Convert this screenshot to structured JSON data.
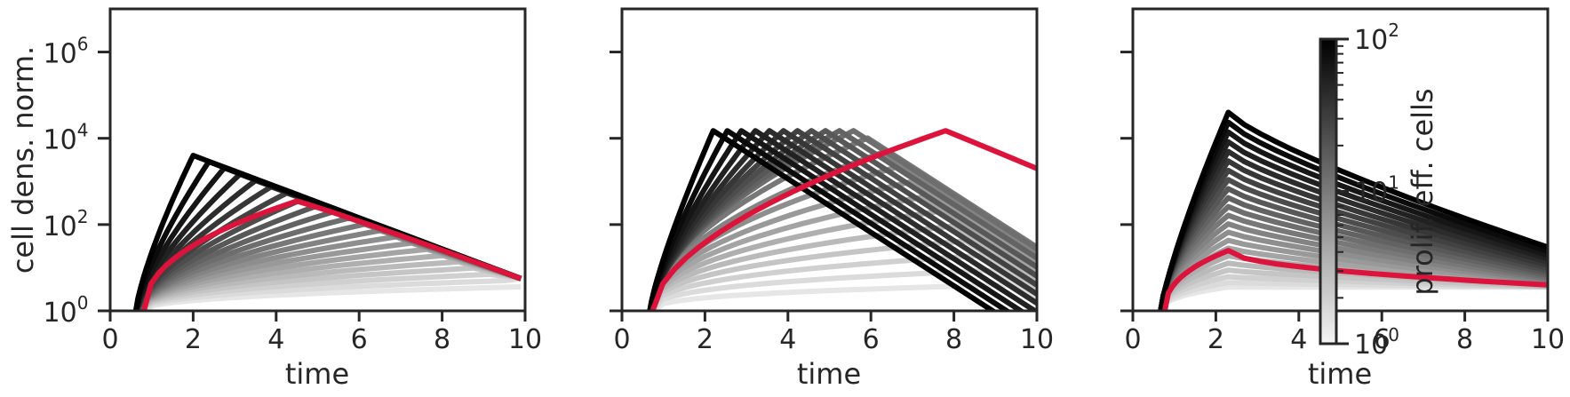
{
  "chart_data": [
    {
      "type": "line",
      "panel": "left",
      "xlabel": "time",
      "ylabel": "cell dens. norm.",
      "xlim": [
        0,
        10
      ],
      "ylim": [
        1,
        10000000
      ],
      "y_scale": "log",
      "x_ticks": [
        "0",
        "2",
        "4",
        "6",
        "8",
        "10"
      ],
      "y_ticks": [
        {
          "base": "10",
          "exp": "0"
        },
        {
          "base": "10",
          "exp": "2"
        },
        {
          "base": "10",
          "exp": "4"
        },
        {
          "base": "10",
          "exp": "6"
        }
      ],
      "peak_start": {
        "time": 2.0,
        "density": 4000
      },
      "peak_end": {
        "time": 9.9,
        "density": 5.6
      },
      "end_point": {
        "time": 9.9,
        "density": 5.6
      },
      "n_series": 22,
      "highlight": {
        "peak_time": 4.5,
        "peak_density": 350,
        "end_density": 5.6,
        "color": "#dc143c"
      }
    },
    {
      "type": "line",
      "panel": "middle",
      "xlabel": "time",
      "ylabel": "",
      "xlim": [
        0,
        10
      ],
      "ylim": [
        1,
        10000000
      ],
      "y_scale": "log",
      "x_ticks": [
        "0",
        "2",
        "4",
        "6",
        "8",
        "10"
      ],
      "peak_density_max": 15000,
      "peak_time_first": 2.2,
      "peak_time_last": 9.3,
      "end_time": 10,
      "n_series": 22,
      "highlight": {
        "peak_time": 7.8,
        "peak_density": 15000,
        "end_density": 2000,
        "color": "#dc143c"
      }
    },
    {
      "type": "line",
      "panel": "right",
      "xlabel": "time",
      "ylabel": "",
      "xlim": [
        0,
        10
      ],
      "ylim": [
        1,
        10000000
      ],
      "y_scale": "log",
      "x_ticks": [
        "0",
        "2",
        "4",
        "6",
        "8",
        "10"
      ],
      "peak_time": 2.3,
      "peak_density_max": 40000,
      "end_time": 10,
      "n_series": 22,
      "highlight": {
        "peak_density": 25,
        "end_density": 4,
        "color": "#dc143c"
      }
    }
  ],
  "colorbar": {
    "label": "prolif. eff. cells",
    "scale": "log",
    "range": [
      1,
      100
    ],
    "colormap": [
      "#f2f2f2",
      "#000000"
    ],
    "ticks": [
      {
        "base": "10",
        "exp": "2"
      },
      {
        "base": "10",
        "exp": "1"
      },
      {
        "base": "10",
        "exp": "0"
      }
    ]
  },
  "colors": {
    "axis": "#262626",
    "highlight": "#dc143c"
  }
}
